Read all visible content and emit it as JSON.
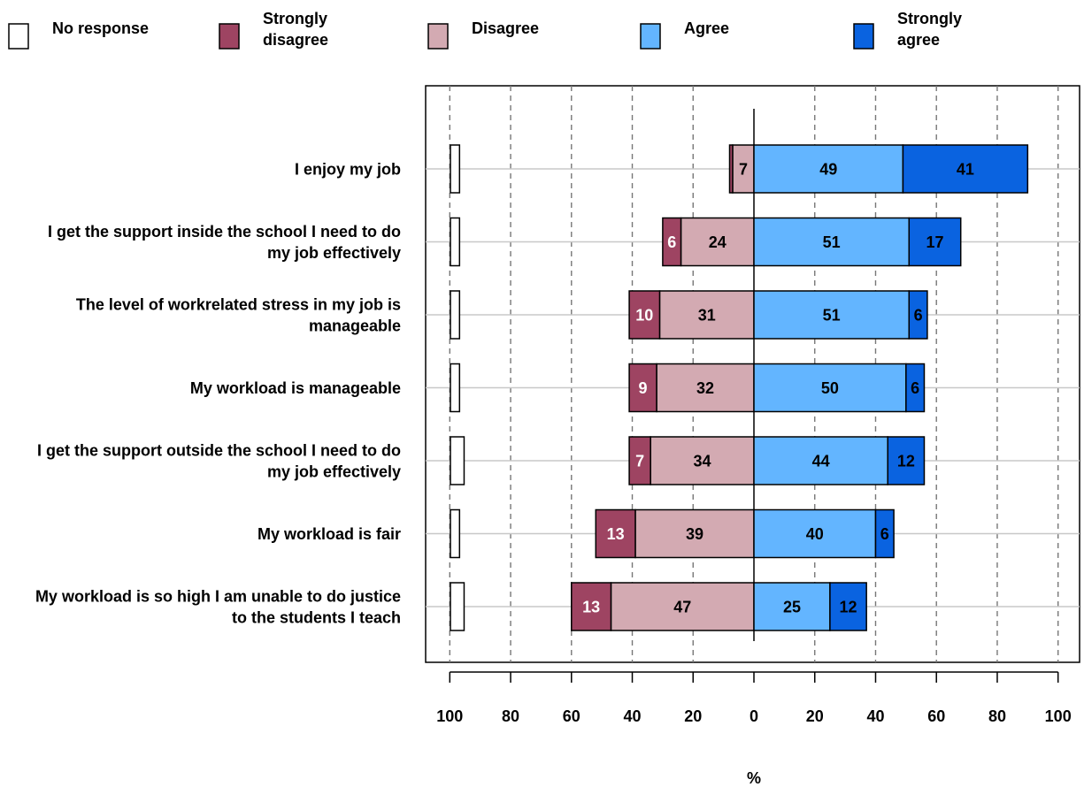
{
  "chart_data": {
    "type": "bar",
    "orientation": "horizontal",
    "stacking": "diverging",
    "xlabel": "%",
    "xlim": [
      -100,
      100
    ],
    "xticks": [
      -100,
      -80,
      -60,
      -40,
      -20,
      0,
      20,
      40,
      60,
      80,
      100
    ],
    "xtick_labels": [
      "100",
      "80",
      "60",
      "40",
      "20",
      "0",
      "20",
      "40",
      "60",
      "80",
      "100"
    ],
    "grid": "vertical dashed",
    "legend_position": "top",
    "categories": [
      [
        "I enjoy my job"
      ],
      [
        "I get the support inside the school I need to do",
        "my job effectively"
      ],
      [
        "The level of workrelated stress in my job is",
        "manageable"
      ],
      [
        "My workload is manageable"
      ],
      [
        "I get the support outside the school I need to do",
        "my job effectively"
      ],
      [
        "My workload is fair"
      ],
      [
        "My workload is so high I am unable to do justice",
        "to the students I teach"
      ]
    ],
    "series": [
      {
        "name": "No response",
        "legend_lines": [
          "No response"
        ],
        "color": "#ffffff",
        "side": "separate",
        "values": [
          2,
          2,
          2,
          2,
          3,
          2,
          3
        ]
      },
      {
        "name": "Strongly disagree",
        "legend_lines": [
          "Strongly",
          "disagree"
        ],
        "color": "#9e4462",
        "side": "negative",
        "values": [
          1,
          6,
          10,
          9,
          7,
          13,
          13
        ]
      },
      {
        "name": "Disagree",
        "legend_lines": [
          "Disagree"
        ],
        "color": "#d3aab2",
        "side": "negative",
        "values": [
          7,
          24,
          31,
          32,
          34,
          39,
          47
        ]
      },
      {
        "name": "Agree",
        "legend_lines": [
          "Agree"
        ],
        "color": "#63b5ff",
        "side": "positive",
        "values": [
          49,
          51,
          51,
          50,
          44,
          40,
          25
        ]
      },
      {
        "name": "Strongly agree",
        "legend_lines": [
          "Strongly",
          "agree"
        ],
        "color": "#0a63e0",
        "side": "positive",
        "values": [
          41,
          17,
          6,
          6,
          12,
          6,
          12
        ]
      }
    ],
    "data_labels": [
      [
        "",
        "",
        "7",
        "49",
        "41"
      ],
      [
        "",
        "6",
        "24",
        "51",
        "17"
      ],
      [
        "",
        "10",
        "31",
        "51",
        "6"
      ],
      [
        "",
        "9",
        "32",
        "50",
        "6"
      ],
      [
        "",
        "7",
        "34",
        "44",
        "12"
      ],
      [
        "",
        "13",
        "39",
        "40",
        "6"
      ],
      [
        "",
        "13",
        "47",
        "25",
        "12"
      ]
    ],
    "data_label_colors": [
      "#000000",
      "#ffffff",
      "#000000",
      "#000000",
      "#000000"
    ]
  }
}
